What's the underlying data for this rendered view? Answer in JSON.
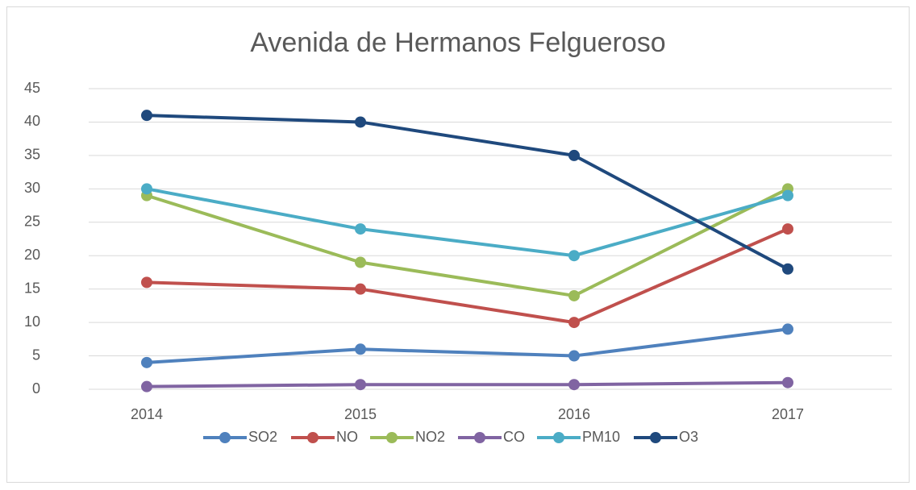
{
  "chart_data": {
    "type": "line",
    "title": "Avenida de Hermanos Felgueroso",
    "categories": [
      "2014",
      "2015",
      "2016",
      "2017"
    ],
    "series": [
      {
        "name": "SO2",
        "color": "#4f81bd",
        "values": [
          4,
          6,
          5,
          9
        ]
      },
      {
        "name": "NO",
        "color": "#c0504d",
        "values": [
          16,
          15,
          10,
          24
        ]
      },
      {
        "name": "NO2",
        "color": "#9bbb59",
        "values": [
          29,
          19,
          14,
          30
        ]
      },
      {
        "name": "CO",
        "color": "#8064a2",
        "values": [
          0.4,
          0.7,
          0.7,
          1
        ]
      },
      {
        "name": "PM10",
        "color": "#4bacc6",
        "values": [
          30,
          24,
          20,
          29
        ]
      },
      {
        "name": "O3",
        "color": "#1f497d",
        "values": [
          41,
          40,
          35,
          18
        ]
      }
    ],
    "ylim": [
      0,
      45
    ],
    "yticks": [
      0,
      5,
      10,
      15,
      20,
      25,
      30,
      35,
      40,
      45
    ],
    "grid": true,
    "legend": "bottom"
  }
}
